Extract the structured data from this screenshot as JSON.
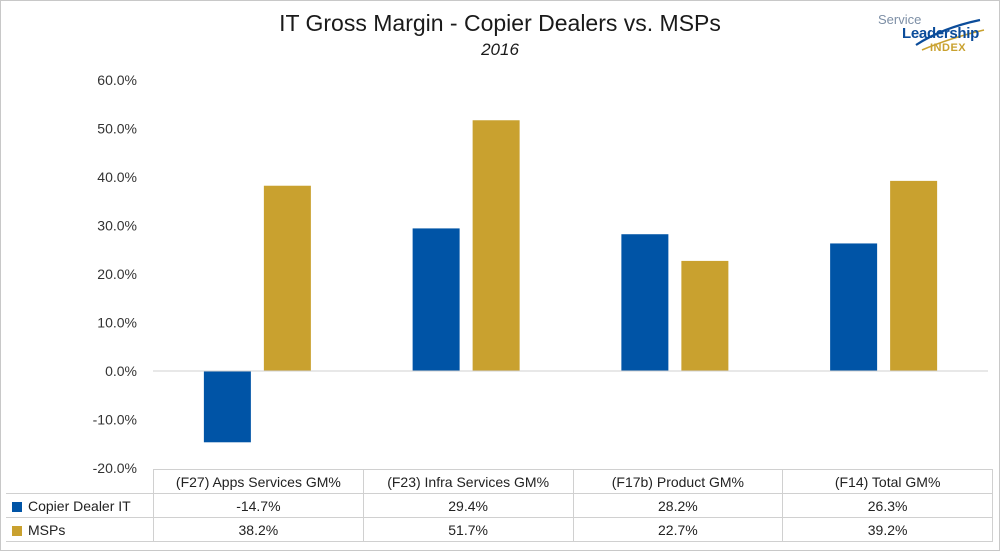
{
  "chart_data": {
    "type": "bar",
    "title": "IT Gross Margin - Copier Dealers vs. MSPs",
    "subtitle": "2016",
    "categories": [
      "(F27) Apps Services GM%",
      "(F23) Infra Services GM%",
      "(F17b) Product GM%",
      "(F14) Total GM%"
    ],
    "series": [
      {
        "name": "Copier Dealer IT",
        "values": [
          -14.7,
          29.4,
          28.2,
          26.3
        ],
        "labels": [
          "-14.7%",
          "29.4%",
          "28.2%",
          "26.3%"
        ],
        "color": "#0054a6"
      },
      {
        "name": "MSPs",
        "values": [
          38.2,
          51.7,
          22.7,
          39.2
        ],
        "labels": [
          "38.2%",
          "51.7%",
          "22.7%",
          "39.2%"
        ],
        "color": "#c9a12f"
      }
    ],
    "yticks": [
      "60.0%",
      "50.0%",
      "40.0%",
      "30.0%",
      "20.0%",
      "10.0%",
      "0.0%",
      "-10.0%",
      "-20.0%"
    ],
    "ylim": [
      -20,
      60
    ],
    "grid": false,
    "legend": "data table"
  },
  "logo": {
    "line1": "Service",
    "line2": "Leadership",
    "line3": "INDEX"
  }
}
